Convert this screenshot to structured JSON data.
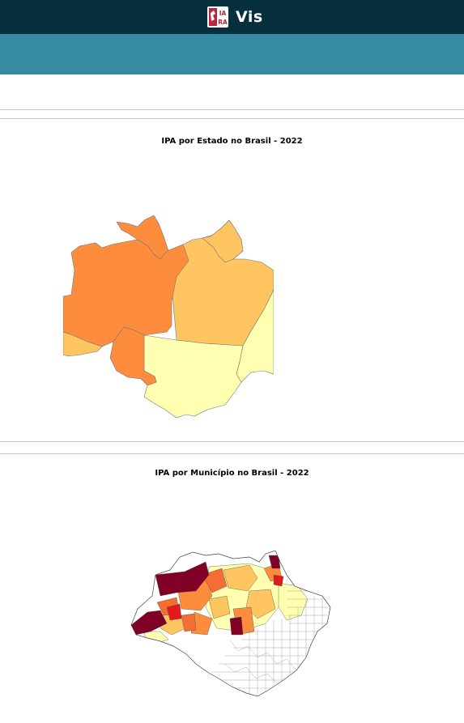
{
  "app": {
    "name": "Vis",
    "logo_letters": [
      "IA",
      "RA"
    ]
  },
  "colors": {
    "topbar": "#07303f",
    "subbar": "#368aa1",
    "very_high": "#800026",
    "high": "#e31a1c",
    "medium_high": "#f46d32",
    "medium": "#fd8d3c",
    "low": "#fec560",
    "very_low": "#ffffb2",
    "none": "#ffffff"
  },
  "panels": [
    {
      "title": "IPA por Estado no Brasil - 2022"
    },
    {
      "title": "IPA por Município no Brasil - 2022"
    }
  ]
}
